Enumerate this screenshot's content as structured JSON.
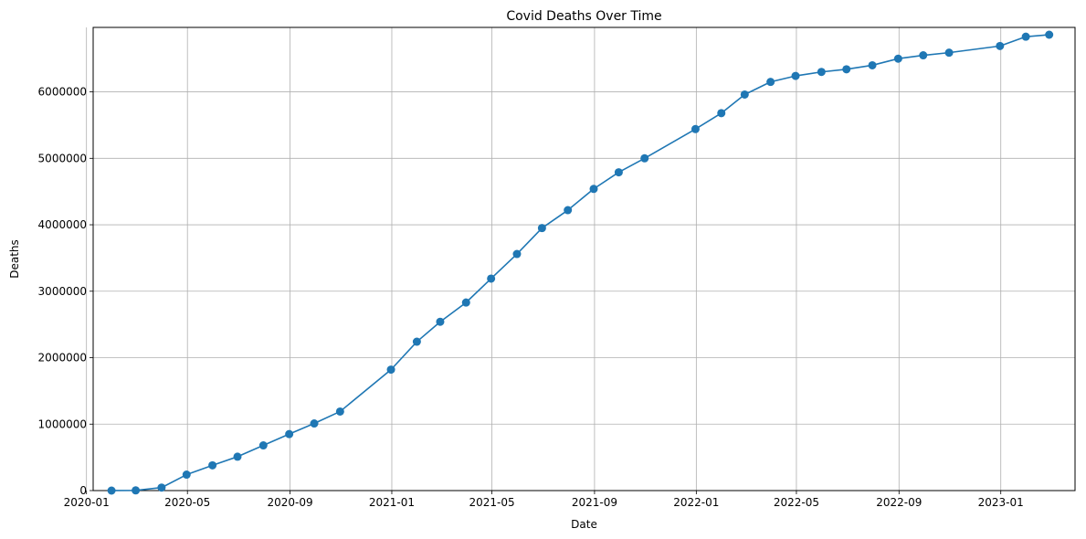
{
  "chart_data": {
    "type": "line",
    "title": "Covid Deaths Over Time",
    "xlabel": "Date",
    "ylabel": "Deaths",
    "xlim": [
      "2020-01-09",
      "2023-03-31"
    ],
    "ylim": [
      0,
      6970000
    ],
    "grid": true,
    "x_ticks": [
      "2020-01-01",
      "2020-05-01",
      "2020-09-01",
      "2021-01-01",
      "2021-05-01",
      "2021-09-01",
      "2022-01-01",
      "2022-05-01",
      "2022-09-01",
      "2023-01-01"
    ],
    "x_tick_labels": [
      "2020-01",
      "2020-05",
      "2020-09",
      "2021-01",
      "2021-05",
      "2021-09",
      "2022-01",
      "2022-05",
      "2022-09",
      "2023-01"
    ],
    "y_ticks": [
      0,
      1000000,
      2000000,
      3000000,
      4000000,
      5000000,
      6000000
    ],
    "y_tick_labels": [
      "0",
      "1000000",
      "2000000",
      "3000000",
      "4000000",
      "5000000",
      "6000000"
    ],
    "color": "#1f77b4",
    "series": [
      {
        "x": [
          "2020-01-31",
          "2020-02-29",
          "2020-03-31",
          "2020-04-30",
          "2020-05-31",
          "2020-06-30",
          "2020-07-31",
          "2020-08-31",
          "2020-09-30",
          "2020-10-31",
          "2020-12-31",
          "2021-01-31",
          "2021-02-28",
          "2021-03-31",
          "2021-04-30",
          "2021-05-31",
          "2021-06-30",
          "2021-07-31",
          "2021-08-31",
          "2021-09-30",
          "2021-10-31",
          "2021-12-31",
          "2022-01-31",
          "2022-02-28",
          "2022-03-31",
          "2022-04-30",
          "2022-05-31",
          "2022-06-30",
          "2022-07-31",
          "2022-08-31",
          "2022-09-30",
          "2022-10-31",
          "2022-12-31",
          "2023-01-31",
          "2023-02-28"
        ],
        "y": [
          0,
          3000,
          45000,
          240000,
          380000,
          510000,
          680000,
          850000,
          1010000,
          1190000,
          1820000,
          2240000,
          2540000,
          2830000,
          3190000,
          3560000,
          3950000,
          4220000,
          4540000,
          4790000,
          5000000,
          5440000,
          5680000,
          5960000,
          6150000,
          6240000,
          6300000,
          6340000,
          6400000,
          6500000,
          6550000,
          6590000,
          6690000,
          6830000,
          6860000
        ]
      }
    ]
  }
}
